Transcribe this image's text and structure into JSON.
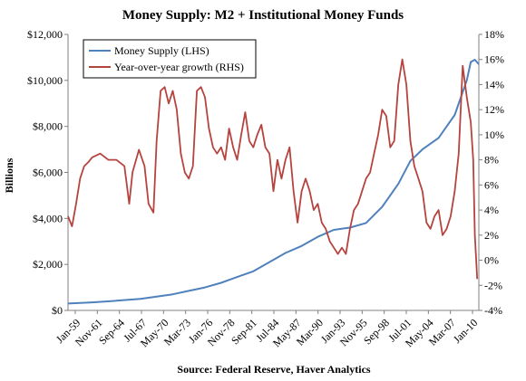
{
  "chart_data": {
    "type": "line",
    "title": "Money Supply:  M2 + Institutional Money Funds",
    "source": "Source:  Federal Reserve, Haver Analytics",
    "ylabel_left": "Billions",
    "ylim_left": [
      0,
      12000
    ],
    "ylim_right": [
      -4,
      18
    ],
    "y_left_ticks": [
      "$0",
      "$2,000",
      "$4,000",
      "$6,000",
      "$8,000",
      "$10,000",
      "$12,000"
    ],
    "y_right_ticks": [
      "-4%",
      "-2%",
      "0%",
      "2%",
      "4%",
      "6%",
      "8%",
      "10%",
      "12%",
      "14%",
      "16%",
      "18%"
    ],
    "x_ticks": [
      "Jan-59",
      "Nov-61",
      "Sep-64",
      "Jul-67",
      "May-70",
      "Mar-73",
      "Jan-76",
      "Nov-78",
      "Sep-81",
      "Jul-84",
      "May-87",
      "Mar-90",
      "Jan-93",
      "Nov-95",
      "Sep-98",
      "Jul-01",
      "May-04",
      "Mar-07",
      "Jan-10"
    ],
    "x_range": [
      1959.0,
      2010.0
    ],
    "grid": false,
    "legend_position": "top-left",
    "series": [
      {
        "name": "Money Supply (LHS)",
        "axis": "left",
        "color": "#4f81bd",
        "x": [
          1959.0,
          1962.0,
          1965.0,
          1968.0,
          1970.0,
          1972.0,
          1974.0,
          1976.0,
          1978.0,
          1980.0,
          1982.0,
          1984.0,
          1986.0,
          1988.0,
          1990.0,
          1992.0,
          1994.0,
          1996.0,
          1998.0,
          2000.0,
          2001.5,
          2003.0,
          2005.0,
          2007.0,
          2008.5,
          2009.0,
          2009.5,
          2010.0
        ],
        "values": [
          300,
          350,
          420,
          500,
          600,
          700,
          850,
          1000,
          1200,
          1450,
          1700,
          2100,
          2500,
          2800,
          3200,
          3500,
          3600,
          3800,
          4500,
          5500,
          6500,
          7000,
          7500,
          8500,
          10000,
          10800,
          10900,
          10700
        ]
      },
      {
        "name": "Year-over-year growth (RHS)",
        "axis": "right",
        "color": "#b5433e",
        "x": [
          1959.0,
          1959.5,
          1960.0,
          1960.5,
          1961.0,
          1961.5,
          1962.0,
          1963.0,
          1964.0,
          1965.0,
          1966.0,
          1966.6,
          1967.0,
          1967.8,
          1968.5,
          1969.0,
          1969.6,
          1970.0,
          1970.5,
          1971.0,
          1971.5,
          1972.0,
          1972.5,
          1973.0,
          1973.5,
          1974.0,
          1974.5,
          1975.0,
          1975.5,
          1976.0,
          1976.5,
          1977.0,
          1977.5,
          1978.0,
          1978.5,
          1979.0,
          1979.5,
          1980.0,
          1980.5,
          1981.0,
          1981.5,
          1982.0,
          1982.5,
          1983.0,
          1983.5,
          1984.0,
          1984.5,
          1985.0,
          1985.5,
          1986.0,
          1986.5,
          1987.0,
          1987.5,
          1988.0,
          1988.5,
          1989.0,
          1989.5,
          1990.0,
          1990.5,
          1991.0,
          1991.5,
          1992.0,
          1992.5,
          1993.0,
          1993.5,
          1994.0,
          1994.5,
          1995.0,
          1995.5,
          1996.0,
          1996.5,
          1997.0,
          1997.5,
          1998.0,
          1998.5,
          1999.0,
          1999.5,
          2000.0,
          2000.5,
          2001.0,
          2001.5,
          2002.0,
          2002.5,
          2003.0,
          2003.5,
          2004.0,
          2004.5,
          2005.0,
          2005.5,
          2006.0,
          2006.5,
          2007.0,
          2007.5,
          2008.0,
          2008.5,
          2009.0,
          2009.3,
          2009.5,
          2009.8
        ],
        "values": [
          3.5,
          2.7,
          4.5,
          6.5,
          7.5,
          7.8,
          8.2,
          8.5,
          8.0,
          8.0,
          7.5,
          4.5,
          7.0,
          8.8,
          7.5,
          4.5,
          3.8,
          9.5,
          13.5,
          13.8,
          12.5,
          13.5,
          12.0,
          8.5,
          7.0,
          6.5,
          7.5,
          13.5,
          13.8,
          13.0,
          10.5,
          9.0,
          8.5,
          9.0,
          8.0,
          10.5,
          9.0,
          8.0,
          10.0,
          11.8,
          9.5,
          9.0,
          10.0,
          10.8,
          9.0,
          8.5,
          5.5,
          8.0,
          6.5,
          8.0,
          9.0,
          5.5,
          3.0,
          5.5,
          6.5,
          5.5,
          4.0,
          4.5,
          3.0,
          2.5,
          1.5,
          1.0,
          0.5,
          1.0,
          0.5,
          2.5,
          4.0,
          4.5,
          5.5,
          6.5,
          7.0,
          8.5,
          10.0,
          12.0,
          11.5,
          9.0,
          9.5,
          14.0,
          16.0,
          14.0,
          9.5,
          7.5,
          6.5,
          5.5,
          3.0,
          2.5,
          3.5,
          4.0,
          2.0,
          2.5,
          3.5,
          5.5,
          8.5,
          15.5,
          13.0,
          11.0,
          8.0,
          2.0,
          -1.5
        ]
      }
    ]
  }
}
